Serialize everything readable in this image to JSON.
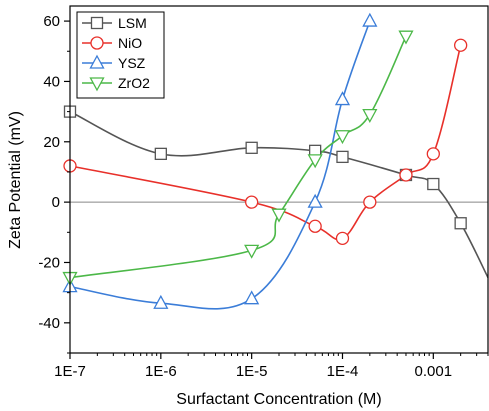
{
  "chart_data": {
    "type": "line",
    "title": "",
    "xlabel": "Surfactant Concentration (M)",
    "ylabel": "Zeta Potential (mV)",
    "xscale": "log",
    "xlim": [
      1e-07,
      0.004
    ],
    "ylim": [
      -50,
      65
    ],
    "x_ticks": [
      1e-07,
      1e-06,
      1e-05,
      0.0001,
      0.001
    ],
    "x_tick_labels": [
      "1E-7",
      "1E-6",
      "1E-5",
      "1E-4",
      "0.001"
    ],
    "y_ticks": [
      -40,
      -20,
      0,
      20,
      40,
      60
    ],
    "y_tick_labels": [
      "-40",
      "-20",
      "0",
      "20",
      "40",
      "60"
    ],
    "zero_line": true,
    "legend_position": "top-left",
    "series": [
      {
        "name": "LSM",
        "color": "#555555",
        "marker": "square",
        "x": [
          1e-07,
          1e-06,
          1e-05,
          5e-05,
          0.0001,
          0.0005,
          0.001,
          0.002
        ],
        "y": [
          30,
          16,
          18,
          17,
          15,
          9,
          6,
          -7
        ],
        "curve_tail": [
          {
            "x": 0.004,
            "y": -25
          }
        ]
      },
      {
        "name": "NiO",
        "color": "#e8302a",
        "marker": "circle",
        "x": [
          1e-07,
          1e-05,
          5e-05,
          0.0001,
          0.0002,
          0.0005,
          0.001,
          0.002
        ],
        "y": [
          12,
          0,
          -8,
          -12,
          0,
          9,
          16,
          52
        ]
      },
      {
        "name": "YSZ",
        "color": "#3b7dd8",
        "marker": "triangle-up",
        "x": [
          1e-07,
          1e-06,
          1e-05,
          5e-05,
          0.0001,
          0.0002
        ],
        "y": [
          -28,
          -33.5,
          -32,
          0,
          34,
          60
        ]
      },
      {
        "name": "ZrO2",
        "color": "#4cb848",
        "marker": "triangle-down",
        "x": [
          1e-07,
          1e-05,
          2e-05,
          5e-05,
          0.0001,
          0.0002,
          0.0005
        ],
        "y": [
          -25,
          -16,
          -4,
          14,
          22,
          29,
          55
        ]
      }
    ]
  }
}
